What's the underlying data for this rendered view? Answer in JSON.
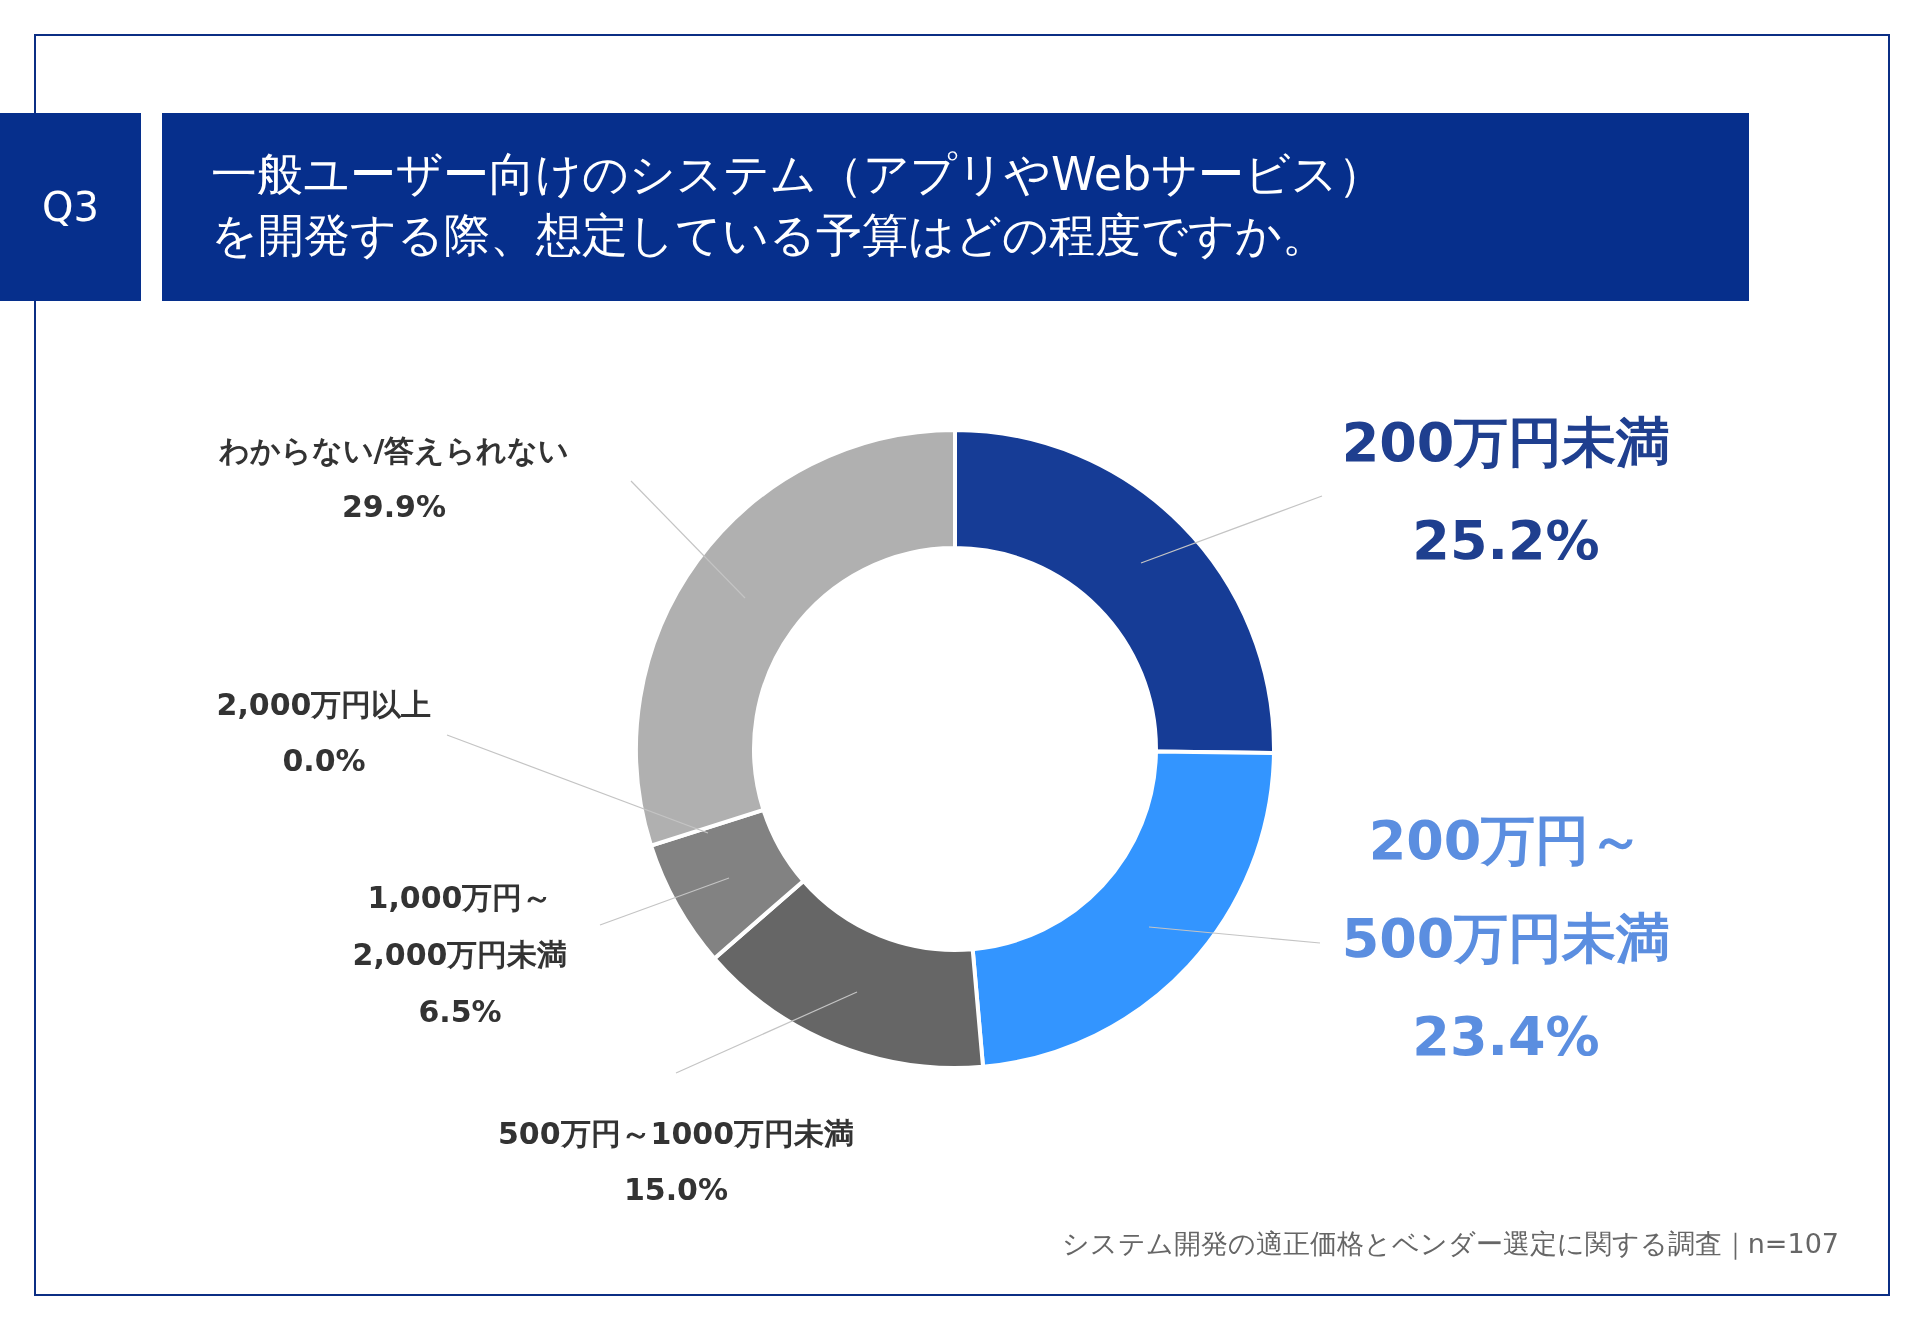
{
  "chart_data": {
    "type": "donut",
    "title": "一般ユーザー向けのシステム（アプリやWebサービス）を開発する際、想定している予算はどの程度ですか。",
    "categories": [
      "200万円未満",
      "200万円～500万円未満",
      "500万円～1000万円未満",
      "1,000万円～2,000万円未満",
      "2,000万円以上",
      "わからない/答えられない"
    ],
    "values": [
      25.2,
      23.4,
      15.0,
      6.5,
      0.0,
      29.9
    ],
    "value_labels": [
      "25.2%",
      "23.4%",
      "15.0%",
      "6.5%",
      "0.0%",
      "29.9%"
    ],
    "colors": [
      "#163c96",
      "#3395ff",
      "#666666",
      "#828282",
      "#999999",
      "#b0b0b0"
    ],
    "legend": false,
    "annotations": [
      "Q3",
      "システム開発の適正価格とベンダー選定に関する調査｜n=107"
    ]
  }
}
